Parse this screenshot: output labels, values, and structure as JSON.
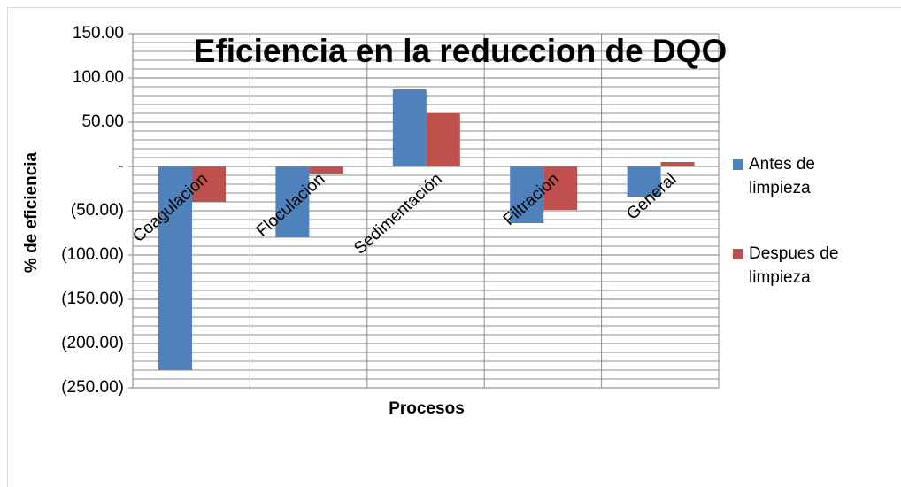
{
  "chart_data": {
    "type": "bar",
    "title": "Eficiencia en la reduccion de DQO",
    "x_label": "Procesos",
    "y_label": "% de eficiencia",
    "categories": [
      "Coagulacion",
      "Floculacion",
      "Sedimentación",
      "Filtracion",
      "General"
    ],
    "series": [
      {
        "name": "Antes de limpieza",
        "color": "#4f81bd",
        "values": [
          -230,
          -80,
          87,
          -64,
          -34
        ]
      },
      {
        "name": "Despues de limpieza",
        "color": "#c0504d",
        "values": [
          -40,
          -8,
          60,
          -49,
          5
        ]
      }
    ],
    "ylim": [
      -250,
      150
    ],
    "yticks": [
      {
        "value": -250,
        "label": "(250.00)"
      },
      {
        "value": -200,
        "label": "(200.00)"
      },
      {
        "value": -150,
        "label": "(150.00)"
      },
      {
        "value": -100,
        "label": "(100.00)"
      },
      {
        "value": -50,
        "label": "(50.00)"
      },
      {
        "value": 0,
        "label": "-"
      },
      {
        "value": 50,
        "label": "50.00"
      },
      {
        "value": 100,
        "label": "100.00"
      },
      {
        "value": 150,
        "label": "150.00"
      }
    ],
    "grid": true,
    "minor_grid": true,
    "legend": "right"
  }
}
